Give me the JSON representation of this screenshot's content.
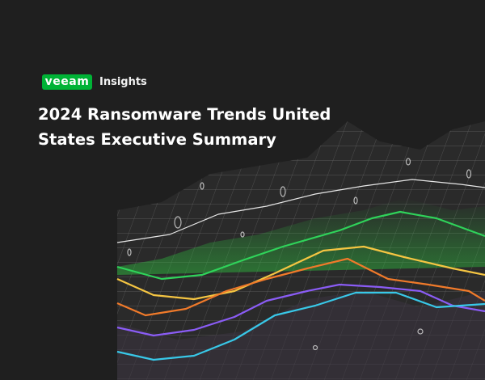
{
  "header": {
    "logo": "veeam",
    "section": "Insights"
  },
  "title": {
    "lines": [
      "2024 Ransomware Trends United",
      "States Executive Summary"
    ]
  }
}
